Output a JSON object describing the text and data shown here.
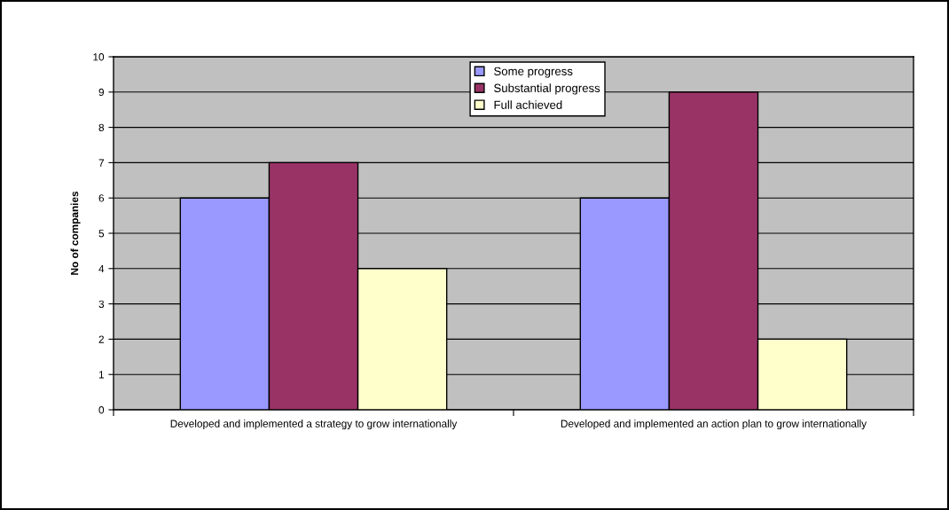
{
  "chart_data": {
    "type": "bar",
    "ylabel": "No of companies",
    "categories": [
      "Developed and implemented a strategy to grow internationally",
      "Developed and implemented an action plan to grow internationally"
    ],
    "series": [
      {
        "name": "Some progress",
        "color": "#9999ff",
        "values": [
          6,
          6
        ]
      },
      {
        "name": "Substantial progress",
        "color": "#993366",
        "values": [
          7,
          9
        ]
      },
      {
        "name": "Full achieved",
        "color": "#ffffcc",
        "values": [
          4,
          2
        ]
      }
    ],
    "ylim": [
      0,
      10
    ],
    "yticks": [
      0,
      1,
      2,
      3,
      4,
      5,
      6,
      7,
      8,
      9,
      10
    ],
    "grid": "y",
    "legend": "top"
  }
}
